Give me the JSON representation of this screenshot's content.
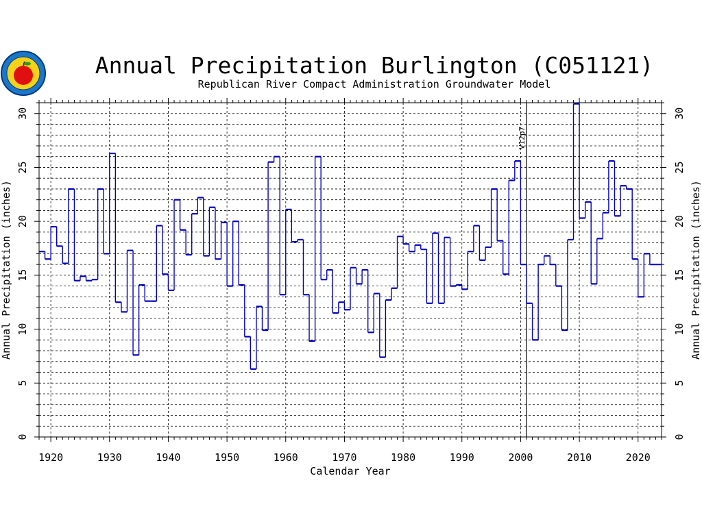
{
  "chart_data": {
    "type": "line",
    "step": true,
    "title": "Annual Precipitation Burlington (C051121)",
    "subtitle": "Republican River Compact Administration Groundwater Model",
    "xlabel": "Calendar Year",
    "ylabel": "Annual Precipitation (inches)",
    "xlim": [
      1918,
      2024
    ],
    "ylim": [
      0,
      31
    ],
    "x_ticks": [
      1920,
      1930,
      1940,
      1950,
      1960,
      1970,
      1980,
      1990,
      2000,
      2010,
      2020
    ],
    "y_ticks": [
      0,
      5,
      10,
      15,
      20,
      25,
      30
    ],
    "grid": true,
    "line_color": "#0000c0",
    "annotation": {
      "x": 2001,
      "text": "V12p7"
    },
    "x": [
      1918,
      1919,
      1920,
      1921,
      1922,
      1923,
      1924,
      1925,
      1926,
      1927,
      1928,
      1929,
      1930,
      1931,
      1932,
      1933,
      1934,
      1935,
      1936,
      1937,
      1938,
      1939,
      1940,
      1941,
      1942,
      1943,
      1944,
      1945,
      1946,
      1947,
      1948,
      1949,
      1950,
      1951,
      1952,
      1953,
      1954,
      1955,
      1956,
      1957,
      1958,
      1959,
      1960,
      1961,
      1962,
      1963,
      1964,
      1965,
      1966,
      1967,
      1968,
      1969,
      1970,
      1971,
      1972,
      1973,
      1974,
      1975,
      1976,
      1977,
      1978,
      1979,
      1980,
      1981,
      1982,
      1983,
      1984,
      1985,
      1986,
      1987,
      1988,
      1989,
      1990,
      1991,
      1992,
      1993,
      1994,
      1995,
      1996,
      1997,
      1998,
      1999,
      2000,
      2001,
      2002,
      2003,
      2004,
      2005,
      2006,
      2007,
      2008,
      2009,
      2010,
      2011,
      2012,
      2013,
      2014,
      2015,
      2016,
      2017,
      2018,
      2019,
      2020,
      2021,
      2022,
      2023
    ],
    "values": [
      17.2,
      16.5,
      19.5,
      17.7,
      16.1,
      23.0,
      14.5,
      14.9,
      14.5,
      14.6,
      23.0,
      17.0,
      26.3,
      12.5,
      11.6,
      17.3,
      7.6,
      14.1,
      12.6,
      12.6,
      19.6,
      15.1,
      13.6,
      22.0,
      19.2,
      16.9,
      20.7,
      22.2,
      16.8,
      21.3,
      16.5,
      19.9,
      14.0,
      20.0,
      14.1,
      9.3,
      6.3,
      12.1,
      9.9,
      25.5,
      26.0,
      13.2,
      21.1,
      18.1,
      18.3,
      13.2,
      8.9,
      26.0,
      14.6,
      15.5,
      11.5,
      12.5,
      11.8,
      15.7,
      14.2,
      15.5,
      9.7,
      13.3,
      7.4,
      12.7,
      13.8,
      18.6,
      17.9,
      17.2,
      17.8,
      17.4,
      12.4,
      18.9,
      12.4,
      18.5,
      14.0,
      14.1,
      13.7,
      17.2,
      19.6,
      16.4,
      17.6,
      23.0,
      18.2,
      15.1,
      23.8,
      25.6,
      16.0,
      12.4,
      9.0,
      16.0,
      16.8,
      16.0,
      14.0,
      9.9,
      18.3,
      30.9,
      20.3,
      21.8,
      14.2,
      18.4,
      20.8,
      25.6,
      20.5,
      23.3,
      23.0,
      16.5,
      13.0,
      17.0,
      16.0,
      16.0
    ]
  }
}
